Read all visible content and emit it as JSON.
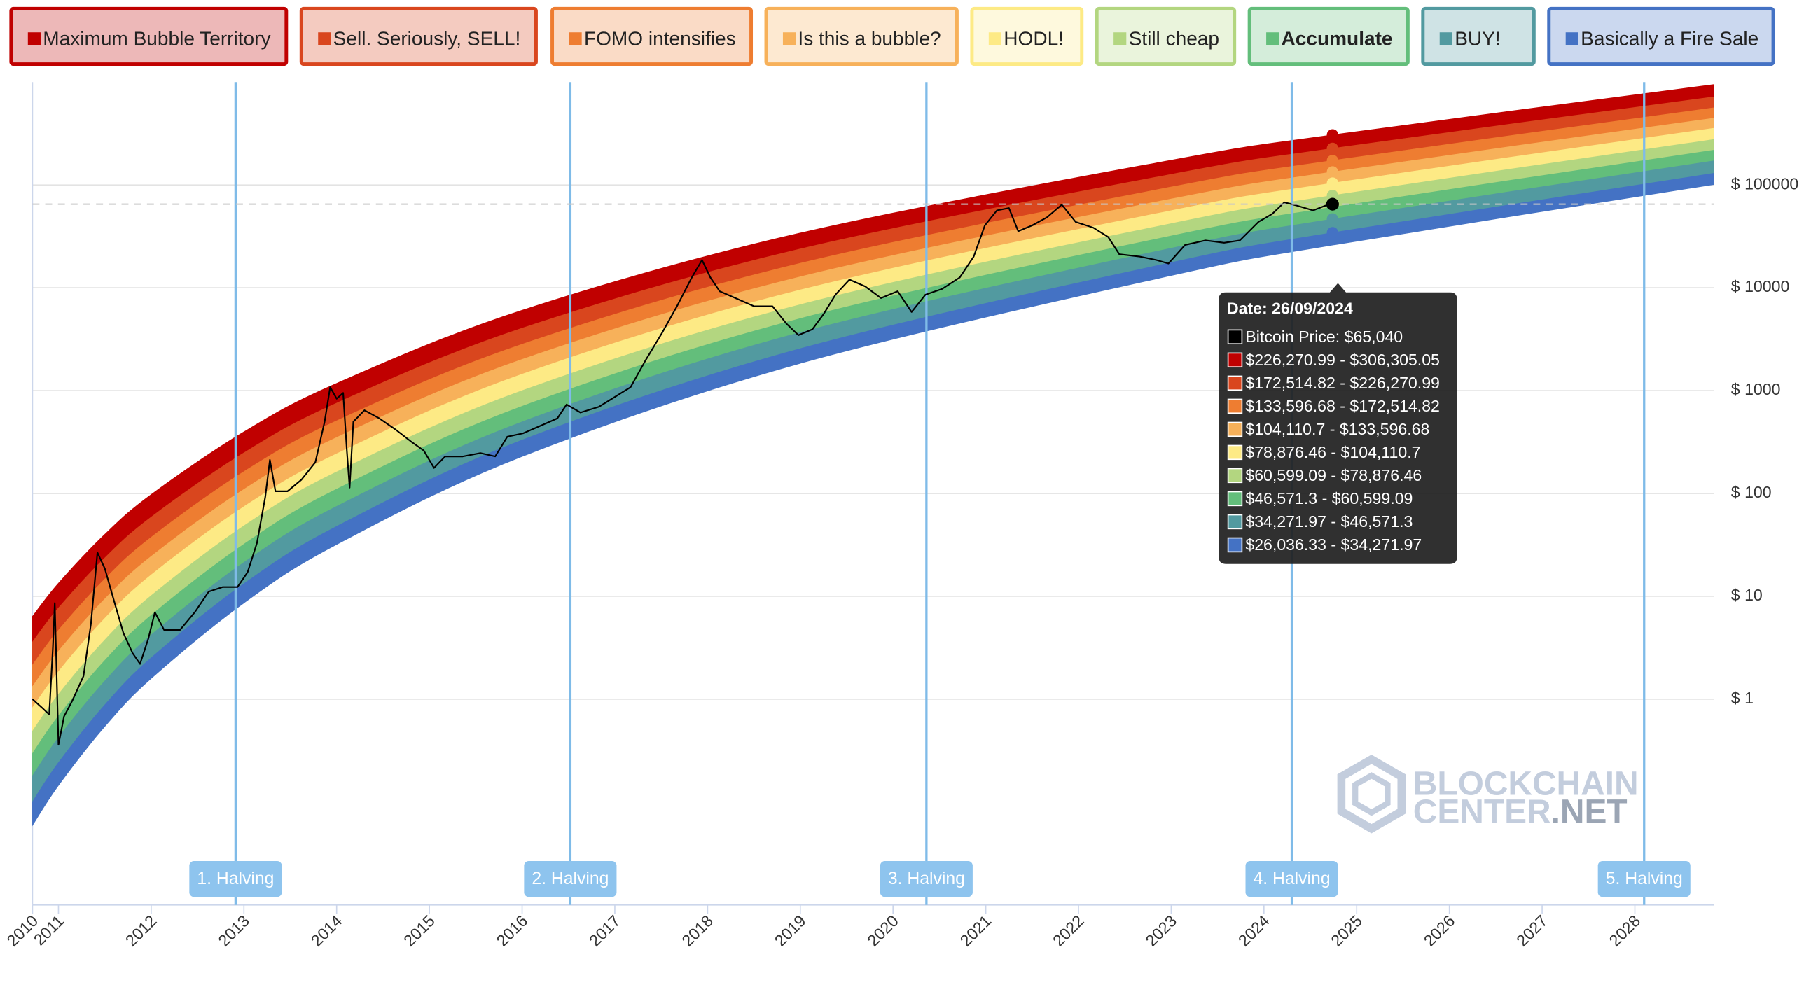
{
  "chart_data": {
    "type": "rainbow",
    "log_scale": true,
    "grid": true,
    "xlim": [
      2010.72,
      2028.85
    ],
    "xticks": [
      {
        "value": 2010.72,
        "label": "2010"
      },
      2011,
      2012,
      2013,
      2014,
      2015,
      2016,
      2017,
      2018,
      2019,
      2020,
      2021,
      2022,
      2023,
      2024,
      2025,
      2026,
      2027,
      2028
    ],
    "ylim": [
      0.01,
      1000000
    ],
    "yticks": [
      {
        "value": 1,
        "label": "$ 1"
      },
      {
        "value": 10,
        "label": "$ 10"
      },
      {
        "value": 100,
        "label": "$ 100"
      },
      {
        "value": 1000,
        "label": "$ 1000"
      },
      {
        "value": 10000,
        "label": "$ 10000"
      },
      {
        "value": 100000,
        "label": "$ 100000"
      }
    ],
    "x": [
      2010.72,
      2011,
      2011.5,
      2012,
      2013,
      2014,
      2016,
      2019,
      2023,
      2024.74,
      2028.85
    ],
    "series": [
      {
        "name": "Maximum Bubble Territory",
        "color": "#c00000",
        "range_label": "$226,270.99 - $306,305.05",
        "low": [
          3.593,
          7.685,
          23.57,
          58.84,
          247.9,
          754.6,
          4036,
          23800,
          126700,
          226270.99,
          717800
        ],
        "high": [
          6.381,
          13.39,
          39.98,
          97.52,
          396.7,
          1175,
          6032,
          34060,
          174000,
          306305.05,
          944800
        ]
      },
      {
        "name": "Sell. Seriously, SELL!",
        "color": "#d9461e",
        "range_label": "$172,514.82 - $226,270.99",
        "low": [
          2.15,
          4.674,
          14.7,
          37.43,
          162.8,
          507.8,
          2818,
          17280,
          95390,
          172514.82,
          561600
        ],
        "high": [
          3.593,
          7.685,
          23.57,
          58.84,
          247.9,
          754.6,
          4036,
          23800,
          126700,
          226270.99,
          717800
        ]
      },
      {
        "name": "FOMO intensifies",
        "color": "#ee7d31",
        "range_label": "$133,596.68 - $172,514.82",
        "low": [
          1.324,
          2.923,
          9.41,
          24.41,
          109.4,
          349.3,
          2006,
          12760,
          72970,
          133596.68,
          445100
        ],
        "high": [
          2.15,
          4.674,
          14.7,
          37.43,
          162.8,
          507.8,
          2818,
          17280,
          95390,
          172514.82,
          561600
        ]
      },
      {
        "name": "Is this a bubble?",
        "color": "#f7b15a",
        "range_label": "$104,110.7 - $133,596.68",
        "low": [
          0.825,
          1.85,
          6.091,
          16.1,
          74.27,
          242.5,
          1441,
          9504,
          56210,
          104110.7,
          355100
        ],
        "high": [
          1.324,
          2.923,
          9.41,
          24.41,
          109.4,
          349.3,
          2006,
          12760,
          72970,
          133596.68,
          445100
        ]
      },
      {
        "name": "HODL!",
        "color": "#fdea85",
        "range_label": "$78,876.46 - $104,110.7",
        "low": [
          0.4875,
          1.112,
          3.754,
          10.13,
          48.28,
          161.6,
          997,
          6844,
          42020,
          78876.46,
          276100
        ],
        "high": [
          0.825,
          1.85,
          6.091,
          16.1,
          74.27,
          242.5,
          1441,
          9504,
          56210,
          104110.7,
          355100
        ]
      },
      {
        "name": "Still cheap",
        "color": "#b3d680",
        "range_label": "$60,599.09 - $78,876.46",
        "low": [
          0.2958,
          0.6858,
          2.372,
          6.525,
          32.06,
          109.9,
          702.9,
          5011,
          31890,
          60599.09,
          217500
        ],
        "high": [
          0.4875,
          1.112,
          3.754,
          10.13,
          48.28,
          161.6,
          997,
          6844,
          42020,
          78876.46,
          276100
        ]
      },
      {
        "name": "Accumulate",
        "color": "#63be7b",
        "range_label": "$46,571.3 - $60,599.09",
        "low": [
          0.1795,
          0.4229,
          1.498,
          4.204,
          21.3,
          74.76,
          495.7,
          3669,
          24200,
          46571.3,
          171200
        ],
        "high": [
          0.2958,
          0.6858,
          2.372,
          6.525,
          32.06,
          109.9,
          702.9,
          5011,
          31890,
          60599.09,
          217500
        ]
      },
      {
        "name": "BUY!",
        "color": "#529aa0",
        "range_label": "$34,271.97 - $46,571.3",
        "low": [
          0.1004,
          0.241,
          0.8781,
          2.519,
          13.23,
          47.75,
          329.9,
          2554,
          17550,
          34271.97,
          129600
        ],
        "high": [
          0.1795,
          0.4229,
          1.498,
          4.204,
          21.3,
          74.76,
          495.7,
          3669,
          24200,
          46571.3,
          171200
        ]
      },
      {
        "name": "Basically a Fire Sale",
        "color": "#4472c4",
        "range_label": "$26,036.33 - $34,271.97",
        "low": [
          0.0596,
          0.1457,
          0.5441,
          1.593,
          8.638,
          31.96,
          229.2,
          1845,
          13166,
          26036.33,
          101100
        ],
        "high": [
          0.1004,
          0.241,
          0.8781,
          2.519,
          13.23,
          47.75,
          329.9,
          2554,
          17550,
          34271.97,
          129600
        ]
      }
    ],
    "price": {
      "color": "#000000",
      "tooltip_label": "Bitcoin Price: $65,040",
      "x": [
        2010.72,
        2010.82,
        2010.9,
        2010.94,
        2010.96,
        2011.0,
        2011.06,
        2011.15,
        2011.27,
        2011.35,
        2011.42,
        2011.5,
        2011.6,
        2011.7,
        2011.8,
        2011.88,
        2011.97,
        2012.04,
        2012.14,
        2012.31,
        2012.47,
        2012.62,
        2012.77,
        2012.93,
        2013.04,
        2013.14,
        2013.23,
        2013.28,
        2013.34,
        2013.47,
        2013.62,
        2013.77,
        2013.87,
        2013.93,
        2014.0,
        2014.07,
        2014.11,
        2014.14,
        2014.18,
        2014.3,
        2014.46,
        2014.64,
        2014.8,
        2014.94,
        2015.05,
        2015.17,
        2015.36,
        2015.55,
        2015.71,
        2015.84,
        2016.01,
        2016.21,
        2016.38,
        2016.48,
        2016.63,
        2016.83,
        2017.01,
        2017.17,
        2017.33,
        2017.51,
        2017.67,
        2017.83,
        2017.94,
        2018.03,
        2018.13,
        2018.3,
        2018.5,
        2018.7,
        2018.85,
        2018.98,
        2019.13,
        2019.25,
        2019.38,
        2019.53,
        2019.7,
        2019.87,
        2020.05,
        2020.2,
        2020.35,
        2020.53,
        2020.72,
        2020.87,
        2020.99,
        2021.12,
        2021.25,
        2021.35,
        2021.5,
        2021.66,
        2021.82,
        2021.97,
        2022.16,
        2022.32,
        2022.44,
        2022.66,
        2022.84,
        2022.97,
        2023.15,
        2023.37,
        2023.57,
        2023.74,
        2023.94,
        2024.09,
        2024.22,
        2024.36,
        2024.53,
        2024.66,
        2024.74
      ],
      "values": [
        1.0,
        0.83,
        0.71,
        3.2,
        8.6,
        0.36,
        0.68,
        0.97,
        1.68,
        5.4,
        26.7,
        18.6,
        9.0,
        4.4,
        2.8,
        2.2,
        3.9,
        7.0,
        4.7,
        4.7,
        7.0,
        11.1,
        12.3,
        12.3,
        17.2,
        32.9,
        92.5,
        212,
        105,
        105,
        136,
        201,
        498,
        1080,
        834,
        950,
        261,
        114,
        498,
        644,
        537,
        415,
        321,
        261,
        177,
        229,
        229,
        247,
        229,
        356,
        384,
        460,
        537,
        733,
        612,
        697,
        879,
        1080,
        1960,
        3650,
        6610,
        12600,
        18600,
        12600,
        9250,
        7930,
        6610,
        6610,
        4480,
        3460,
        3940,
        5520,
        8570,
        12000,
        10300,
        7930,
        9250,
        5810,
        8570,
        9750,
        12600,
        20100,
        40400,
        56600,
        59600,
        35500,
        40400,
        48400,
        64400,
        43700,
        38400,
        31200,
        21200,
        20100,
        18600,
        17200,
        26100,
        28900,
        27400,
        28900,
        43700,
        52400,
        67800,
        62800,
        56600,
        62800,
        65040
      ]
    },
    "halvings": [
      {
        "x": 2012.91,
        "label": "1. Halving"
      },
      {
        "x": 2016.52,
        "label": "2. Halving"
      },
      {
        "x": 2020.36,
        "label": "3. Halving"
      },
      {
        "x": 2024.3,
        "label": "4. Halving"
      },
      {
        "x": 2028.1,
        "label": "5. Halving"
      }
    ],
    "tooltip": {
      "title": "Date: 26/09/2024"
    },
    "watermark": {
      "line1": "BLOCKCHAIN",
      "line2": "CENTER",
      "line2_accent": ".NET"
    }
  }
}
